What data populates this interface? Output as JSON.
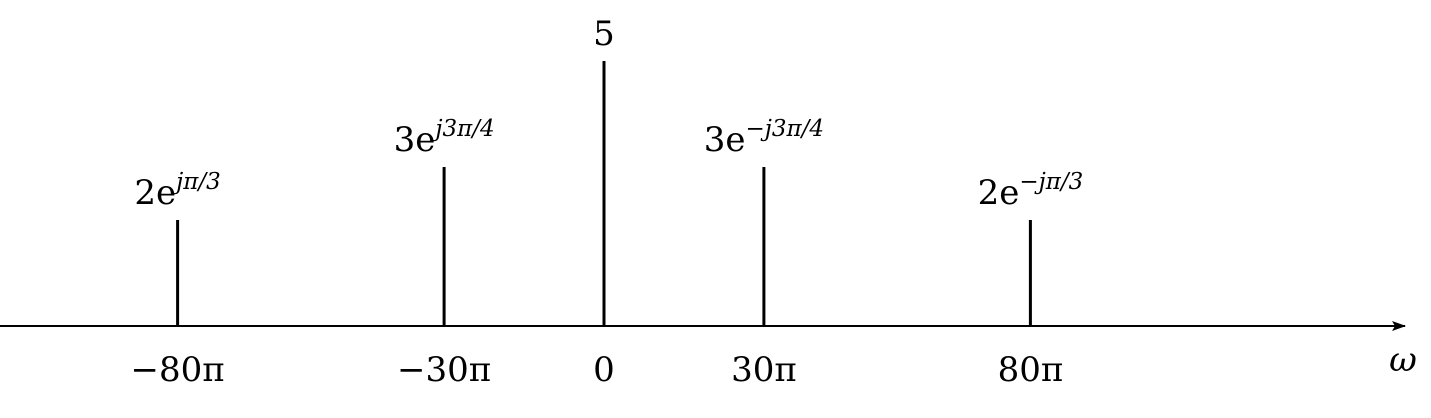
{
  "plot": {
    "axis": {
      "variable_symbol": "ω",
      "range": [
        -105,
        125
      ]
    },
    "stems": [
      {
        "id": "minus-80pi",
        "frequency": -80,
        "magnitude": 2,
        "tick_label": "−80π",
        "amplitude": {
          "base": "2e",
          "exponent": "jπ/3"
        }
      },
      {
        "id": "minus-30pi",
        "frequency": -30,
        "magnitude": 3,
        "tick_label": "−30π",
        "amplitude": {
          "base": "3e",
          "exponent": "j3π/4"
        }
      },
      {
        "id": "zero",
        "frequency": 0,
        "magnitude": 5,
        "tick_label": "0",
        "amplitude": {
          "base": "5",
          "exponent": ""
        }
      },
      {
        "id": "plus-30pi",
        "frequency": 30,
        "magnitude": 3,
        "tick_label": "30π",
        "amplitude": {
          "base": "3e",
          "exponent": "−j3π/4"
        }
      },
      {
        "id": "plus-80pi",
        "frequency": 80,
        "magnitude": 2,
        "tick_label": "80π",
        "amplitude": {
          "base": "2e",
          "exponent": "−jπ/3"
        }
      }
    ]
  }
}
